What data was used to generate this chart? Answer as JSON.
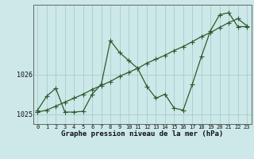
{
  "title": "Graphe pression niveau de la mer (hPa)",
  "background_color": "#cce8e8",
  "grid_color": "#aacccc",
  "line_color": "#2d5a2d",
  "x_labels": [
    "0",
    "1",
    "2",
    "3",
    "4",
    "5",
    "6",
    "7",
    "8",
    "9",
    "10",
    "11",
    "12",
    "13",
    "14",
    "15",
    "16",
    "17",
    "18",
    "19",
    "20",
    "21",
    "22",
    "23"
  ],
  "x_values": [
    0,
    1,
    2,
    3,
    4,
    5,
    6,
    7,
    8,
    9,
    10,
    11,
    12,
    13,
    14,
    15,
    16,
    17,
    18,
    19,
    20,
    21,
    22,
    23
  ],
  "pressure_data": [
    1025.1,
    1025.45,
    1025.65,
    1025.05,
    1025.05,
    1025.07,
    1025.5,
    1025.75,
    1026.85,
    1026.55,
    1026.35,
    1026.15,
    1025.7,
    1025.4,
    1025.5,
    1025.15,
    1025.1,
    1025.75,
    1026.45,
    1027.1,
    1027.5,
    1027.55,
    1027.2,
    1027.2
  ],
  "trend_data": [
    1025.05,
    1025.1,
    1025.2,
    1025.3,
    1025.4,
    1025.5,
    1025.62,
    1025.72,
    1025.82,
    1025.95,
    1026.05,
    1026.15,
    1026.28,
    1026.38,
    1026.48,
    1026.6,
    1026.7,
    1026.82,
    1026.95,
    1027.05,
    1027.18,
    1027.3,
    1027.4,
    1027.22
  ],
  "ylim": [
    1024.75,
    1027.75
  ],
  "yticks": [
    1025,
    1026
  ],
  "marker": "+",
  "marker_size": 4,
  "line_width": 0.9,
  "ylabel_fontsize": 6,
  "xlabel_fontsize": 5,
  "title_fontsize": 6.5
}
